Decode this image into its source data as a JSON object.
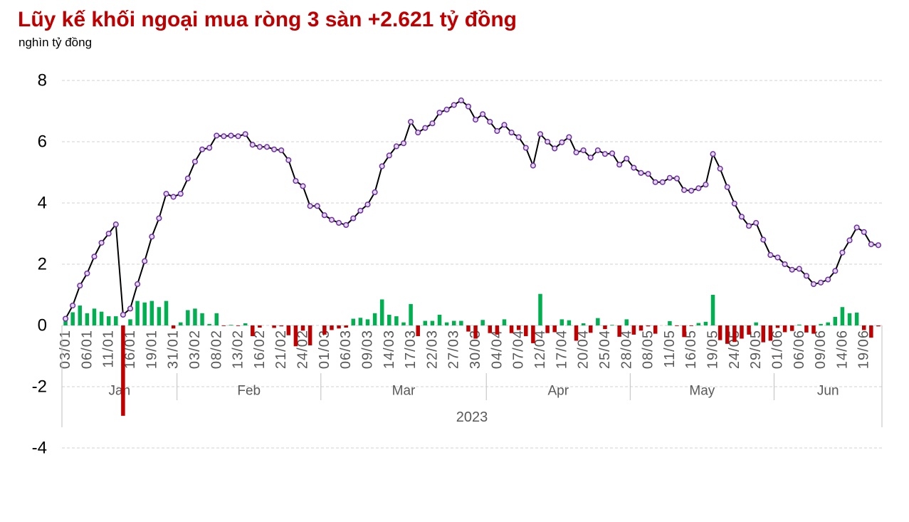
{
  "chart_data": {
    "type": "bar",
    "title": "Lũy kế khối ngoại mua ròng 3 sàn +2.621 tỷ đồng",
    "ylabel": "nghìn tỷ đồng",
    "ylim": [
      -4,
      8
    ],
    "yticks": [
      8,
      6,
      4,
      2,
      0,
      -2,
      -4
    ],
    "grid": true,
    "legend": "none",
    "categories": [
      "03/01",
      "",
      "",
      "06/01",
      "",
      "",
      "11/01",
      "",
      "",
      "16/01",
      "",
      "",
      "19/01",
      "",
      "",
      "31/01",
      "",
      "",
      "03/02",
      "",
      "",
      "08/02",
      "",
      "",
      "13/02",
      "",
      "",
      "16/02",
      "",
      "",
      "21/02",
      "",
      "",
      "24/02",
      "",
      "",
      "01/03",
      "",
      "",
      "06/03",
      "",
      "",
      "09/03",
      "",
      "",
      "14/03",
      "",
      "",
      "17/03",
      "",
      "",
      "22/03",
      "",
      "",
      "27/03",
      "",
      "",
      "30/03",
      "",
      "",
      "04/04",
      "",
      "",
      "07/04",
      "",
      "",
      "12/04",
      "",
      "",
      "17/04",
      "",
      "",
      "20/04",
      "",
      "",
      "25/04",
      "",
      "",
      "28/04",
      "",
      "",
      "08/05",
      "",
      "",
      "11/05",
      "",
      "",
      "16/05",
      "",
      "",
      "19/05",
      "",
      "",
      "24/05",
      "",
      "",
      "29/05",
      "",
      "",
      "01/06",
      "",
      "",
      "06/06",
      "",
      "",
      "09/06",
      "",
      "",
      "14/06",
      "",
      "",
      "19/06",
      "",
      ""
    ],
    "month_groups": [
      {
        "label": "Jan",
        "count": 16
      },
      {
        "label": "Feb",
        "count": 20
      },
      {
        "label": "Mar",
        "count": 23
      },
      {
        "label": "Apr",
        "count": 20
      },
      {
        "label": "May",
        "count": 20
      },
      {
        "label": "Jun",
        "count": 15
      }
    ],
    "year_group": {
      "label": "2023",
      "count": 114
    },
    "series": [
      {
        "type": "bar",
        "values": [
          0.22,
          0.43,
          0.65,
          0.4,
          0.55,
          0.45,
          0.3,
          0.3,
          -2.95,
          0.2,
          0.8,
          0.75,
          0.8,
          0.6,
          0.8,
          -0.1,
          0.1,
          0.5,
          0.55,
          0.4,
          0.05,
          0.4,
          -0.02,
          0.02,
          -0.02,
          0.07,
          -0.35,
          -0.07,
          0.0,
          -0.08,
          -0.03,
          -0.32,
          -0.68,
          -0.17,
          -0.65,
          0.0,
          -0.3,
          -0.15,
          -0.1,
          -0.07,
          0.22,
          0.25,
          0.2,
          0.4,
          0.85,
          0.35,
          0.3,
          0.1,
          0.7,
          -0.35,
          0.15,
          0.15,
          0.35,
          0.1,
          0.15,
          0.15,
          -0.2,
          -0.43,
          0.18,
          -0.25,
          -0.3,
          0.2,
          -0.25,
          -0.15,
          -0.35,
          -0.58,
          1.03,
          -0.25,
          -0.22,
          0.2,
          0.17,
          -0.5,
          0.07,
          -0.24,
          0.24,
          -0.12,
          0.02,
          -0.37,
          0.2,
          -0.3,
          -0.17,
          -0.03,
          -0.27,
          0.0,
          0.14,
          -0.02,
          -0.38,
          -0.02,
          0.08,
          0.12,
          1.0,
          -0.48,
          -0.6,
          -0.54,
          -0.43,
          -0.3,
          0.1,
          -0.55,
          -0.5,
          -0.08,
          -0.22,
          -0.18,
          0.03,
          -0.23,
          -0.27,
          0.05,
          0.1,
          0.28,
          0.6,
          0.4,
          0.42,
          -0.15,
          -0.4,
          -0.03
        ]
      },
      {
        "type": "line",
        "values": [
          0.22,
          0.65,
          1.3,
          1.7,
          2.25,
          2.7,
          3.0,
          3.3,
          0.35,
          0.55,
          1.35,
          2.1,
          2.9,
          3.5,
          4.3,
          4.2,
          4.3,
          4.8,
          5.35,
          5.75,
          5.8,
          6.2,
          6.18,
          6.2,
          6.18,
          6.25,
          5.9,
          5.83,
          5.83,
          5.75,
          5.72,
          5.4,
          4.72,
          4.55,
          3.9,
          3.9,
          3.6,
          3.45,
          3.35,
          3.28,
          3.5,
          3.75,
          3.95,
          4.35,
          5.2,
          5.55,
          5.85,
          5.95,
          6.65,
          6.3,
          6.45,
          6.6,
          6.95,
          7.05,
          7.2,
          7.35,
          7.15,
          6.72,
          6.9,
          6.65,
          6.35,
          6.55,
          6.3,
          6.15,
          5.8,
          5.22,
          6.25,
          6.0,
          5.78,
          5.98,
          6.15,
          5.65,
          5.72,
          5.48,
          5.72,
          5.6,
          5.62,
          5.25,
          5.45,
          5.15,
          4.98,
          4.95,
          4.68,
          4.68,
          4.82,
          4.8,
          4.42,
          4.4,
          4.48,
          4.6,
          5.6,
          5.12,
          4.52,
          3.98,
          3.55,
          3.25,
          3.35,
          2.8,
          2.3,
          2.22,
          2.0,
          1.82,
          1.85,
          1.62,
          1.35,
          1.4,
          1.5,
          1.78,
          2.38,
          2.78,
          3.2,
          3.05,
          2.65,
          2.621
        ]
      }
    ],
    "colors": {
      "title": "#c00000",
      "bar_positive": "#00b050",
      "bar_negative": "#c00000",
      "line": "#000000",
      "marker_stroke": "#7030a0",
      "marker_fill": "#e4d7f5",
      "axis_text": "#595959",
      "gridline": "#d0d0d0"
    }
  }
}
